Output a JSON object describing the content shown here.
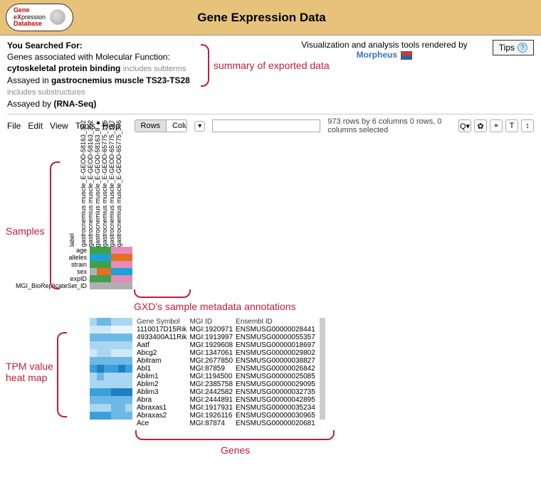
{
  "header": {
    "logo_lines": [
      "Gene",
      "eXpression",
      "Database"
    ],
    "title": "Gene Expression Data"
  },
  "search_summary": {
    "you_searched": "You Searched For:",
    "line1": "Genes associated with Molecular Function:",
    "term": "cytoskeletal protein binding",
    "term_suffix": "includes subterms",
    "line2_prefix": "Assayed in",
    "line2_bold": "gastrocnemius muscle TS23-TS28",
    "line2_suffix": "includes substructures",
    "line3_prefix": "Assayed by",
    "line3_bold": "(RNA-Seq)"
  },
  "viz": {
    "rendered_by": "Visualization and analysis tools rendered by",
    "morpheus": "Morpheus"
  },
  "tips_label": "Tips",
  "menu": [
    "File",
    "Edit",
    "View",
    "Tools",
    "Help"
  ],
  "segment": {
    "rows": "Rows",
    "cols": "Columns"
  },
  "stats": "973 rows by 6 columns  0 rows, 0 columns selected",
  "toolbar_icons": [
    "Q▾",
    "✿",
    "⌖",
    "T",
    "↕"
  ],
  "callouts": {
    "summary": "summary of exported data",
    "samples": "Samples",
    "metadata": "GXD's sample metadata annotations",
    "heatmap": "TPM value\nheat map",
    "genes": "Genes"
  },
  "column_label_word": "label",
  "columns": [
    "gastrocnemius muscle_E-GEOD-58163_302",
    "gastrocnemius muscle_E-GEOD-58163_352",
    "gastrocnemius muscle_E-GEOD-58163_8 ★",
    "gastrocnemius muscle_E-GEOD-65775_186",
    "gastrocnemius muscle_E-GEOD-65775_187",
    "gastrocnemius muscle_E-GEOD-65775_396"
  ],
  "row_meta_labels": [
    "age",
    "alleles",
    "strain",
    "sex",
    "expID",
    "MGI_BioReplicateSet_ID"
  ],
  "meta_colors": {
    "age": [
      "#3fa24a",
      "#3fa24a",
      "#3fa24a",
      "#e58bba",
      "#e58bba",
      "#e58bba"
    ],
    "alleles": [
      "#1aa3d9",
      "#1aa3d9",
      "#1aa3d9",
      "#e46f1f",
      "#e46f1f",
      "#e46f1f"
    ],
    "strain": [
      "#3fa24a",
      "#3fa24a",
      "#3fa24a",
      "#e58bba",
      "#e58bba",
      "#e58bba"
    ],
    "sex": [
      "#b0b0b0",
      "#e46f1f",
      "#e46f1f",
      "#1aa3d9",
      "#1aa3d9",
      "#1aa3d9"
    ],
    "expID": [
      "#3fa24a",
      "#3fa24a",
      "#3fa24a",
      "#e58bba",
      "#e58bba",
      "#e58bba"
    ],
    "MGI_BioReplicateSet_ID": [
      "#b0b0b0",
      "#b0b0b0",
      "#b0b0b0",
      "#b0b0b0",
      "#b0b0b0",
      "#b0b0b0"
    ]
  },
  "gene_header": [
    "Gene Symbol",
    "MGI ID",
    "Ensembl ID"
  ],
  "genes": [
    {
      "sym": "1110017D15Rik",
      "mgi": "MGI:1920971",
      "ens": "ENSMUSG00000028441"
    },
    {
      "sym": "4933400A11Rik",
      "mgi": "MGI:1913997",
      "ens": "ENSMUSG00000055357"
    },
    {
      "sym": "Aatf",
      "mgi": "MGI:1929608",
      "ens": "ENSMUSG00000018697"
    },
    {
      "sym": "Abcg2",
      "mgi": "MGI:1347061",
      "ens": "ENSMUSG00000029802"
    },
    {
      "sym": "Abitram",
      "mgi": "MGI:2677850",
      "ens": "ENSMUSG00000038827"
    },
    {
      "sym": "Abl1",
      "mgi": "MGI:87859",
      "ens": "ENSMUSG00000026842"
    },
    {
      "sym": "Ablim1",
      "mgi": "MGI:1194500",
      "ens": "ENSMUSG00000025085"
    },
    {
      "sym": "Ablim2",
      "mgi": "MGI:2385758",
      "ens": "ENSMUSG00000029095"
    },
    {
      "sym": "Ablim3",
      "mgi": "MGI:2442582",
      "ens": "ENSMUSG00000032735"
    },
    {
      "sym": "Abra",
      "mgi": "MGI:2444891",
      "ens": "ENSMUSG00000042895"
    },
    {
      "sym": "Abraxas1",
      "mgi": "MGI:1917931",
      "ens": "ENSMUSG00000035234"
    },
    {
      "sym": "Abraxas2",
      "mgi": "MGI:1926116",
      "ens": "ENSMUSG00000030965"
    },
    {
      "sym": "Ace",
      "mgi": "MGI:87874",
      "ens": "ENSMUSG00000020681"
    }
  ],
  "heatmap_palette": [
    "#eaf4fb",
    "#cfe8f7",
    "#a9d6f0",
    "#6eb8e6",
    "#3c9fdd",
    "#1f7fc2"
  ],
  "heatmap_values": [
    [
      2,
      3,
      3,
      2,
      2,
      2
    ],
    [
      1,
      1,
      1,
      0,
      0,
      0
    ],
    [
      3,
      3,
      3,
      3,
      3,
      3
    ],
    [
      2,
      2,
      2,
      2,
      2,
      2
    ],
    [
      1,
      2,
      2,
      1,
      1,
      1
    ],
    [
      3,
      3,
      3,
      3,
      3,
      3
    ],
    [
      4,
      5,
      4,
      4,
      5,
      4
    ],
    [
      2,
      3,
      2,
      2,
      2,
      2
    ],
    [
      2,
      2,
      2,
      2,
      2,
      2
    ],
    [
      4,
      4,
      4,
      5,
      5,
      5
    ],
    [
      3,
      3,
      3,
      3,
      3,
      3
    ],
    [
      2,
      2,
      2,
      3,
      3,
      2
    ],
    [
      4,
      4,
      4,
      3,
      3,
      3
    ]
  ]
}
